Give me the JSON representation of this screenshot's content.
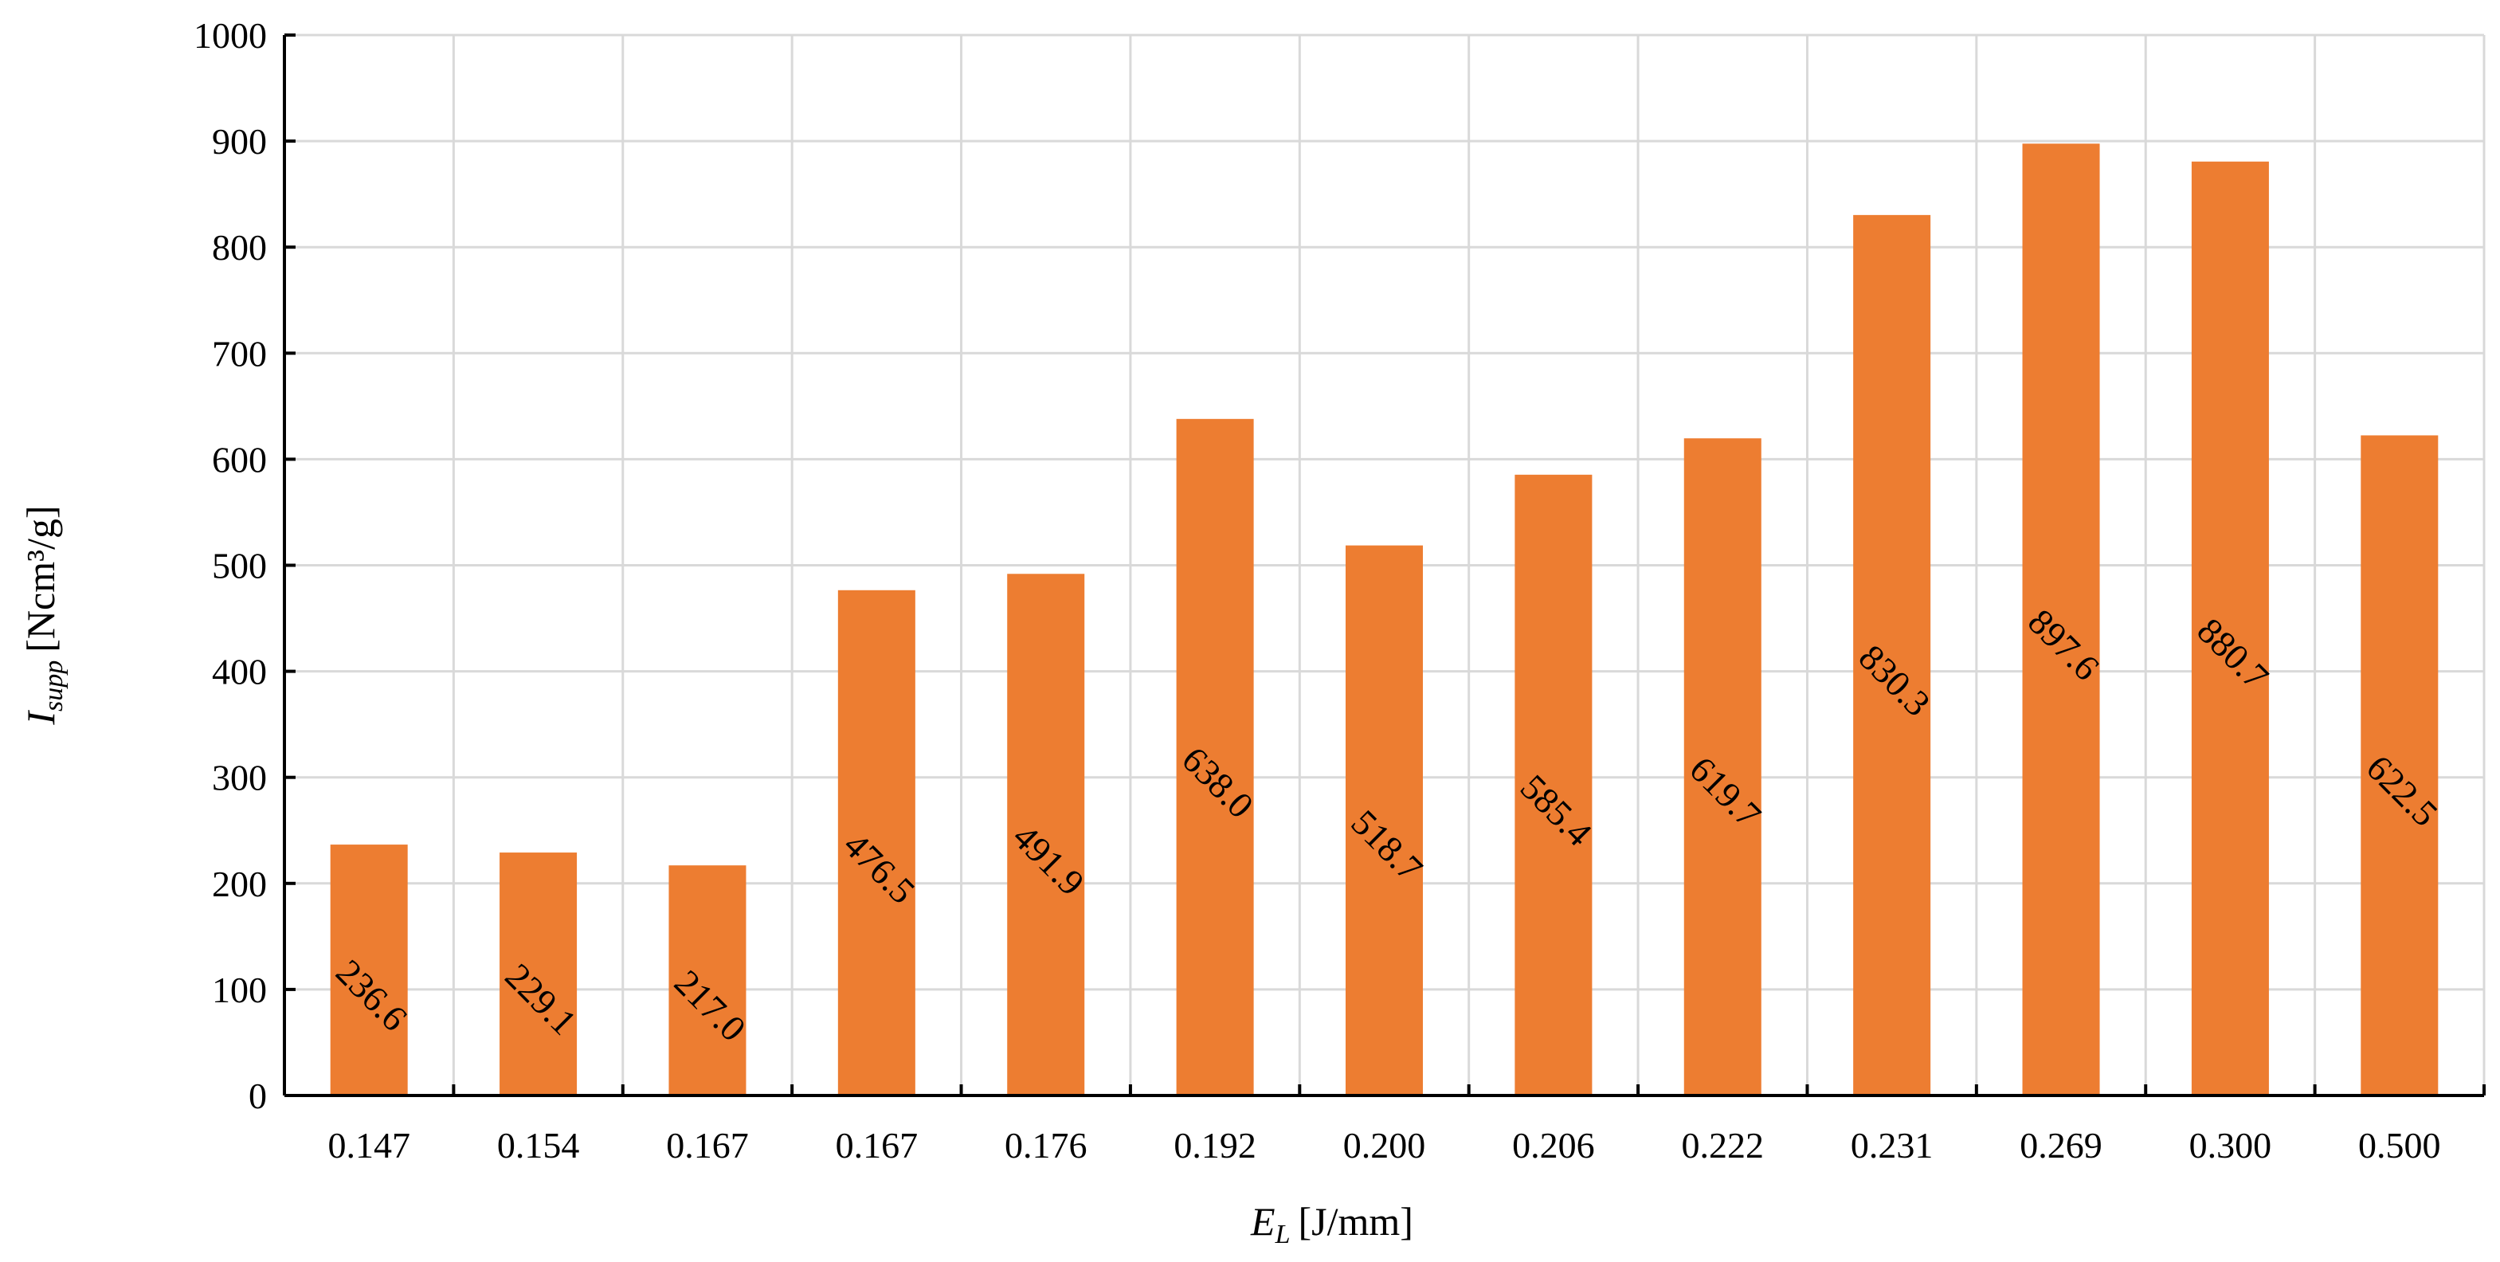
{
  "chart_data": {
    "type": "bar",
    "categories": [
      "0.147",
      "0.154",
      "0.167",
      "0.167",
      "0.176",
      "0.192",
      "0.200",
      "0.206",
      "0.222",
      "0.231",
      "0.269",
      "0.300",
      "0.500"
    ],
    "values": [
      236.6,
      229.1,
      217.0,
      476.5,
      491.9,
      638.0,
      518.7,
      585.4,
      619.7,
      830.3,
      897.6,
      880.7,
      622.5
    ],
    "data_labels": [
      "236.6",
      "229.1",
      "217.0",
      "476.5",
      "491.9",
      "638.0",
      "518.7",
      "585.4",
      "619.7",
      "830.3",
      "897.6",
      "880.7",
      "622.5"
    ],
    "ylim": [
      0,
      1000
    ],
    "yticks": [
      0,
      100,
      200,
      300,
      400,
      500,
      600,
      700,
      800,
      900,
      1000
    ],
    "xlabel": {
      "symbol": "E",
      "subscript": "L",
      "unit": "[J/mm]"
    },
    "ylabel": {
      "symbol": "I",
      "subscript": "supp",
      "unit": "[Ncm³/g]"
    },
    "grid": true,
    "legend": "none",
    "bar_color": "#ED7D31",
    "grid_color": "#D9D9D9",
    "axis_color": "#000000"
  }
}
